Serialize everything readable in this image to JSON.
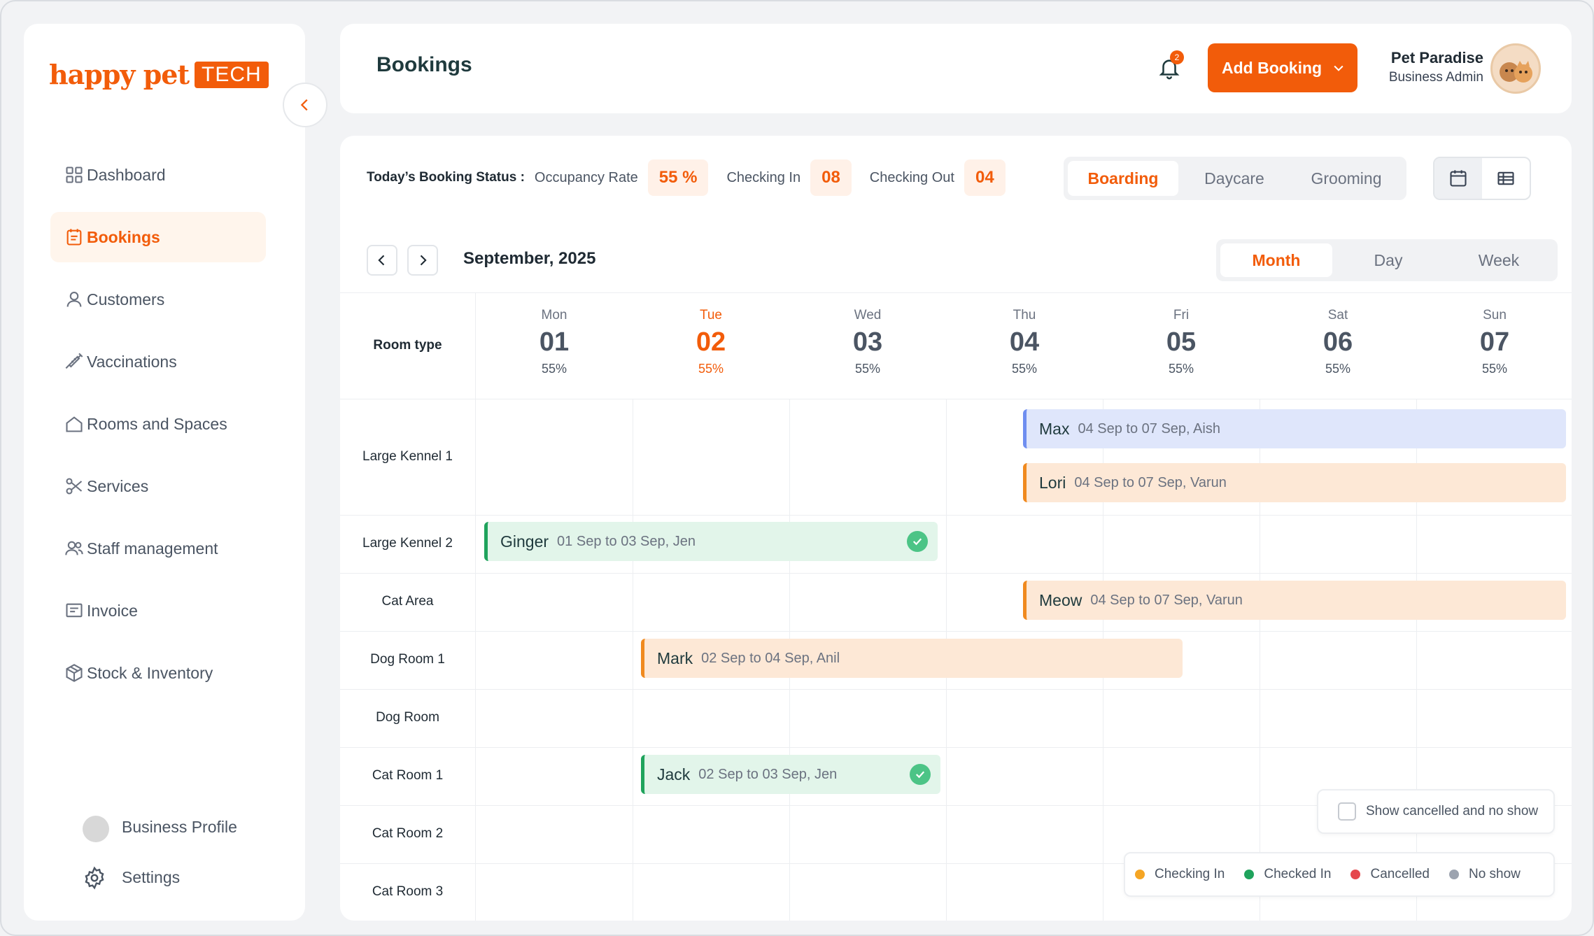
{
  "brand": {
    "logo_text": "happy pet",
    "logo_badge": "TECH"
  },
  "sidebar": {
    "items": [
      {
        "label": "Dashboard",
        "icon": "dashboard-icon"
      },
      {
        "label": "Bookings",
        "icon": "calendar-icon",
        "active": true
      },
      {
        "label": "Customers",
        "icon": "user-icon"
      },
      {
        "label": "Vaccinations",
        "icon": "syringe-icon"
      },
      {
        "label": "Rooms and Spaces",
        "icon": "home-icon"
      },
      {
        "label": "Services",
        "icon": "scissors-icon"
      },
      {
        "label": "Staff management",
        "icon": "users-icon"
      },
      {
        "label": "Invoice",
        "icon": "invoice-icon"
      },
      {
        "label": "Stock & Inventory",
        "icon": "box-icon"
      }
    ],
    "bottom": [
      {
        "label": "Business Profile",
        "icon": "avatar"
      },
      {
        "label": "Settings",
        "icon": "gear-icon"
      }
    ]
  },
  "header": {
    "title": "Bookings",
    "notification_count": "2",
    "add_button": "Add Booking",
    "user_name": "Pet Paradise",
    "user_role": "Business Admin"
  },
  "status": {
    "title": "Today’s Booking Status :",
    "occupancy_label": "Occupancy Rate",
    "occupancy_value": "55 %",
    "checking_in_label": "Checking In",
    "checking_in_value": "08",
    "checking_out_label": "Checking Out",
    "checking_out_value": "04"
  },
  "service_tabs": [
    "Boarding",
    "Daycare",
    "Grooming"
  ],
  "active_service_tab": "Boarding",
  "range_tabs": [
    "Month",
    "Day",
    "Week"
  ],
  "active_range_tab": "Month",
  "calendar": {
    "month_label": "September, 2025",
    "room_type_header": "Room type",
    "days": [
      {
        "name": "Mon",
        "num": "01",
        "pct": "55%"
      },
      {
        "name": "Tue",
        "num": "02",
        "pct": "55%",
        "today": true
      },
      {
        "name": "Wed",
        "num": "03",
        "pct": "55%"
      },
      {
        "name": "Thu",
        "num": "04",
        "pct": "55%"
      },
      {
        "name": "Fri",
        "num": "05",
        "pct": "55%"
      },
      {
        "name": "Sat",
        "num": "06",
        "pct": "55%"
      },
      {
        "name": "Sun",
        "num": "07",
        "pct": "55%"
      }
    ],
    "rooms": [
      "Large Kennel 1",
      "Large Kennel 2",
      "Cat Area",
      "Dog Room 1",
      "Dog Room",
      "Cat Room 1",
      "Cat Room 2",
      "Cat Room 3"
    ],
    "bookings": [
      {
        "pet": "Max",
        "detail": "04 Sep to 07 Sep, Aish",
        "color": "blue"
      },
      {
        "pet": "Lori",
        "detail": "04 Sep to 07 Sep, Varun",
        "color": "orange"
      },
      {
        "pet": "Ginger",
        "detail": "01 Sep to 03 Sep, Jen",
        "color": "green",
        "checked": true
      },
      {
        "pet": "Meow",
        "detail": "04 Sep to 07 Sep, Varun",
        "color": "orange"
      },
      {
        "pet": "Mark",
        "detail": "02 Sep to 04 Sep, Anil",
        "color": "orange"
      },
      {
        "pet": "Jack",
        "detail": "02 Sep to 03 Sep, Jen",
        "color": "green",
        "checked": true
      }
    ]
  },
  "show_cancelled_label": "Show cancelled and no show",
  "legend": [
    {
      "label": "Checking In",
      "color": "#f5a524"
    },
    {
      "label": "Checked In",
      "color": "#1fa35c"
    },
    {
      "label": "Cancelled",
      "color": "#e5484d"
    },
    {
      "label": "No show",
      "color": "#9ca3af"
    }
  ]
}
